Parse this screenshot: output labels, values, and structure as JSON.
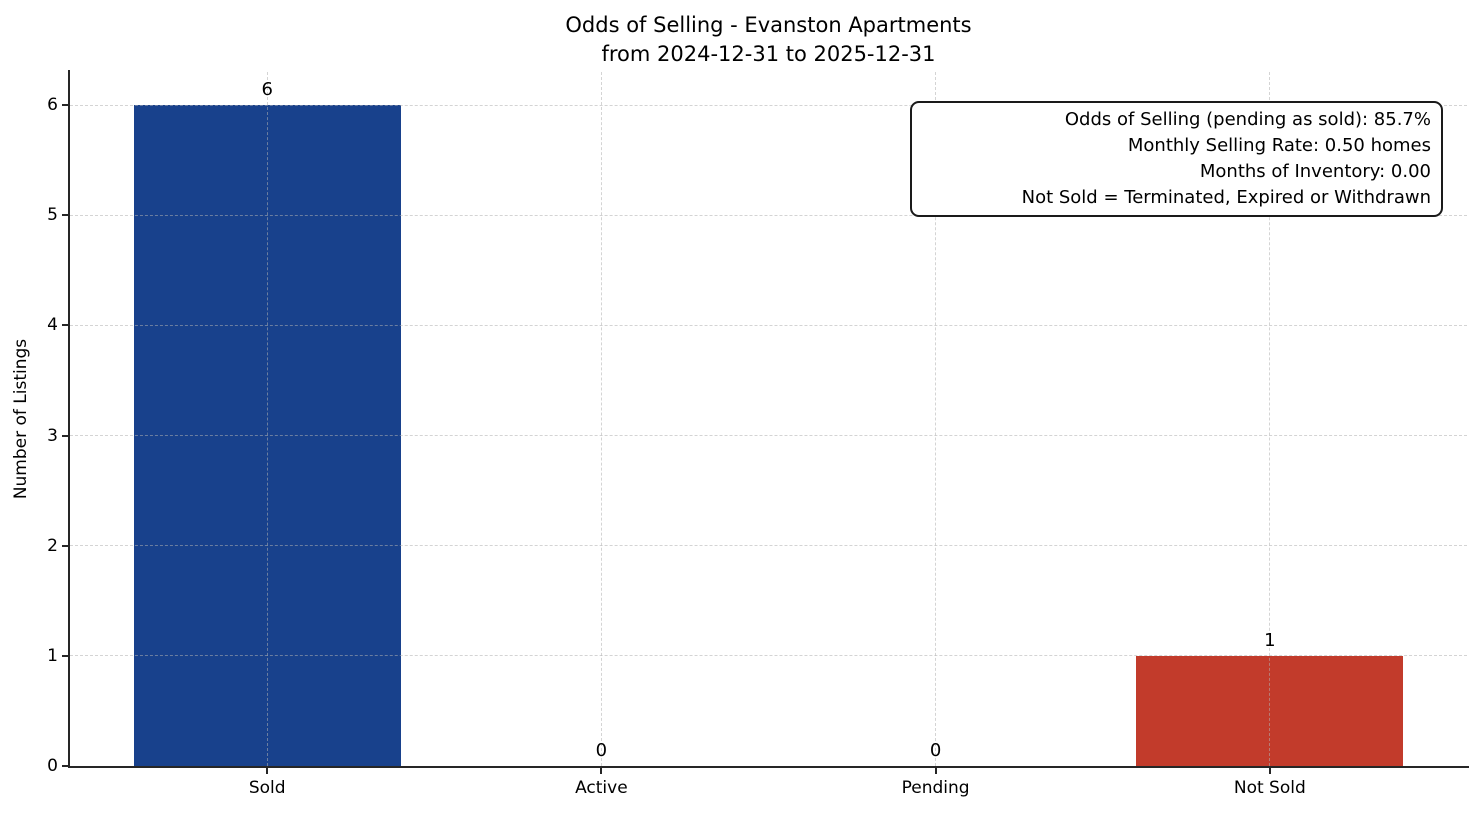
{
  "title": {
    "line1": "Odds of Selling - Evanston Apartments",
    "line2": "from 2024-12-31 to 2025-12-31"
  },
  "chart_data": {
    "type": "bar",
    "title": "Odds of Selling - Evanston Apartments\nfrom 2024-12-31 to 2025-12-31",
    "categories": [
      "Sold",
      "Active",
      "Pending",
      "Not Sold"
    ],
    "values": [
      6,
      0,
      0,
      1
    ],
    "value_labels": [
      "6",
      "0",
      "0",
      "1"
    ],
    "bar_colors": [
      "#18418C",
      null,
      null,
      "#C23B2B"
    ],
    "xlabel": "",
    "ylabel": "Number of Listings",
    "yticks": [
      0,
      1,
      2,
      3,
      4,
      5,
      6
    ],
    "ylim": [
      0,
      6.3
    ],
    "grid": "dashed, horizontal and vertical",
    "legend": "none",
    "annotation_box": {
      "position": "top-right",
      "lines": [
        "Odds of Selling (pending as sold): 85.7%",
        "Monthly Selling Rate: 0.50 homes",
        "Months of Inventory: 0.00",
        "Not Sold = Terminated, Expired or Withdrawn"
      ]
    }
  }
}
